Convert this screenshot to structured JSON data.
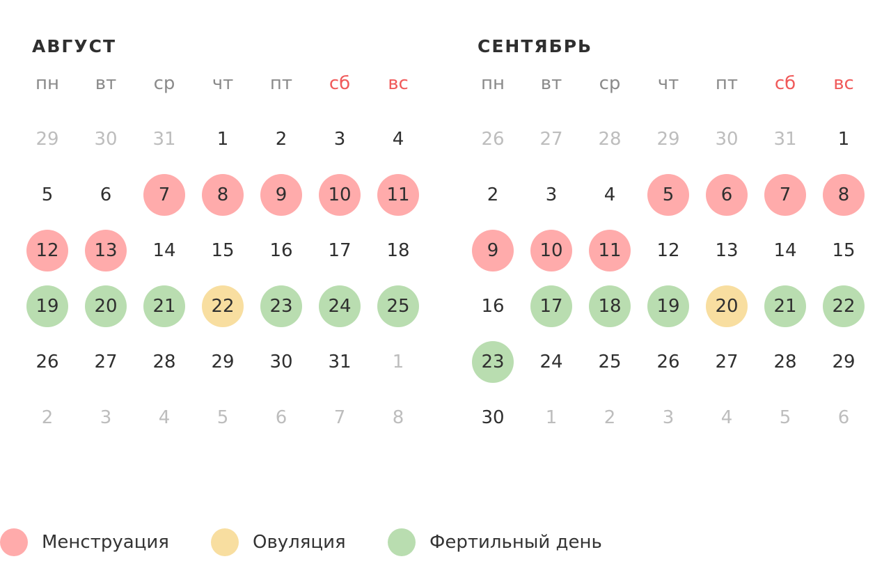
{
  "colors": {
    "menstruation": "#ffabab",
    "ovulation": "#f8dea0",
    "fertile": "#b9ddb0",
    "weekend_text": "#f05a5a",
    "muted_text": "#bdbdbd"
  },
  "weekdays": [
    {
      "label": "пн",
      "weekend": false
    },
    {
      "label": "вт",
      "weekend": false
    },
    {
      "label": "ср",
      "weekend": false
    },
    {
      "label": "чт",
      "weekend": false
    },
    {
      "label": "пт",
      "weekend": false
    },
    {
      "label": "сб",
      "weekend": true
    },
    {
      "label": "вс",
      "weekend": true
    }
  ],
  "months": [
    {
      "title": "АВГУСТ",
      "days": [
        {
          "n": "29",
          "muted": true
        },
        {
          "n": "30",
          "muted": true
        },
        {
          "n": "31",
          "muted": true
        },
        {
          "n": "1"
        },
        {
          "n": "2"
        },
        {
          "n": "3"
        },
        {
          "n": "4"
        },
        {
          "n": "5"
        },
        {
          "n": "6"
        },
        {
          "n": "7",
          "status": "menstruation"
        },
        {
          "n": "8",
          "status": "menstruation"
        },
        {
          "n": "9",
          "status": "menstruation"
        },
        {
          "n": "10",
          "status": "menstruation"
        },
        {
          "n": "11",
          "status": "menstruation"
        },
        {
          "n": "12",
          "status": "menstruation"
        },
        {
          "n": "13",
          "status": "menstruation"
        },
        {
          "n": "14"
        },
        {
          "n": "15"
        },
        {
          "n": "16"
        },
        {
          "n": "17"
        },
        {
          "n": "18"
        },
        {
          "n": "19",
          "status": "fertile"
        },
        {
          "n": "20",
          "status": "fertile"
        },
        {
          "n": "21",
          "status": "fertile"
        },
        {
          "n": "22",
          "status": "ovulation"
        },
        {
          "n": "23",
          "status": "fertile"
        },
        {
          "n": "24",
          "status": "fertile"
        },
        {
          "n": "25",
          "status": "fertile"
        },
        {
          "n": "26"
        },
        {
          "n": "27"
        },
        {
          "n": "28"
        },
        {
          "n": "29"
        },
        {
          "n": "30"
        },
        {
          "n": "31"
        },
        {
          "n": "1",
          "muted": true
        },
        {
          "n": "2",
          "muted": true
        },
        {
          "n": "3",
          "muted": true
        },
        {
          "n": "4",
          "muted": true
        },
        {
          "n": "5",
          "muted": true
        },
        {
          "n": "6",
          "muted": true
        },
        {
          "n": "7",
          "muted": true
        },
        {
          "n": "8",
          "muted": true
        }
      ]
    },
    {
      "title": "СЕНТЯБРЬ",
      "days": [
        {
          "n": "26",
          "muted": true
        },
        {
          "n": "27",
          "muted": true
        },
        {
          "n": "28",
          "muted": true
        },
        {
          "n": "29",
          "muted": true
        },
        {
          "n": "30",
          "muted": true
        },
        {
          "n": "31",
          "muted": true
        },
        {
          "n": "1"
        },
        {
          "n": "2"
        },
        {
          "n": "3"
        },
        {
          "n": "4"
        },
        {
          "n": "5",
          "status": "menstruation"
        },
        {
          "n": "6",
          "status": "menstruation"
        },
        {
          "n": "7",
          "status": "menstruation"
        },
        {
          "n": "8",
          "status": "menstruation"
        },
        {
          "n": "9",
          "status": "menstruation"
        },
        {
          "n": "10",
          "status": "menstruation"
        },
        {
          "n": "11",
          "status": "menstruation"
        },
        {
          "n": "12"
        },
        {
          "n": "13"
        },
        {
          "n": "14"
        },
        {
          "n": "15"
        },
        {
          "n": "16"
        },
        {
          "n": "17",
          "status": "fertile"
        },
        {
          "n": "18",
          "status": "fertile"
        },
        {
          "n": "19",
          "status": "fertile"
        },
        {
          "n": "20",
          "status": "ovulation"
        },
        {
          "n": "21",
          "status": "fertile"
        },
        {
          "n": "22",
          "status": "fertile"
        },
        {
          "n": "23",
          "status": "fertile"
        },
        {
          "n": "24"
        },
        {
          "n": "25"
        },
        {
          "n": "26"
        },
        {
          "n": "27"
        },
        {
          "n": "28"
        },
        {
          "n": "29"
        },
        {
          "n": "30"
        },
        {
          "n": "1",
          "muted": true
        },
        {
          "n": "2",
          "muted": true
        },
        {
          "n": "3",
          "muted": true
        },
        {
          "n": "4",
          "muted": true
        },
        {
          "n": "5",
          "muted": true
        },
        {
          "n": "6",
          "muted": true
        }
      ]
    }
  ],
  "legend": {
    "menstruation_label": "Менструация",
    "ovulation_label": "Овуляция",
    "fertile_label": "Фертильный день"
  }
}
